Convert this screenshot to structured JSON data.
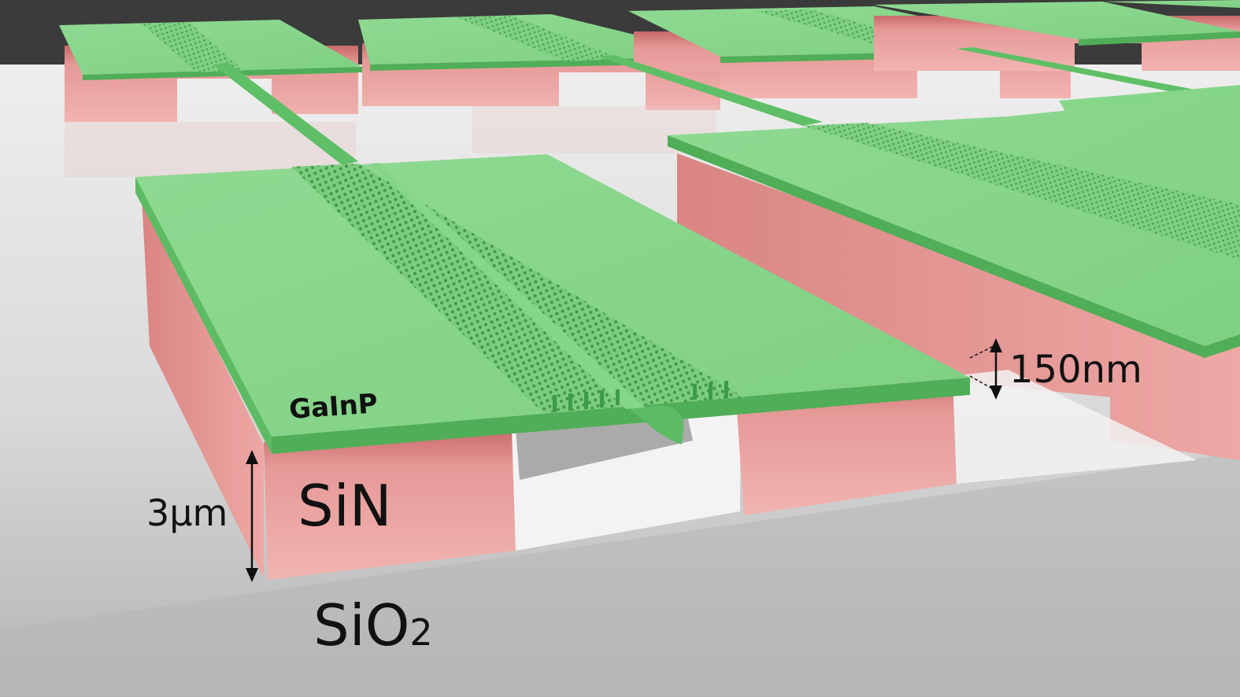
{
  "labels": {
    "top_layer": "GaInP",
    "support_layer": "SiN",
    "substrate_base": "SiO",
    "substrate_sub": "2",
    "support_thickness": "3µm",
    "membrane_thickness": "150nm"
  },
  "colors": {
    "background": "#3b3b3b",
    "substrate": "#d4d4d4",
    "membrane_top": "#86d68a",
    "membrane_edge": "#4fae57",
    "support_light": "#e89d9b",
    "support_dark": "#cf7f7d"
  },
  "structure": {
    "layers": [
      "GaInP",
      "SiN",
      "SiO2"
    ]
  }
}
